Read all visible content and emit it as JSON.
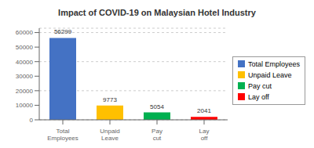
{
  "chart_data": {
    "type": "bar",
    "title": "Impact of COVID-19 on Malaysian Hotel Industry",
    "categories": [
      "Total Employees",
      "Unpaid Leave",
      "Pay cut",
      "Lay off"
    ],
    "values": [
      56299,
      9773,
      5054,
      2041
    ],
    "colors": [
      "#4472C4",
      "#FFC000",
      "#00B050",
      "#FF0000"
    ],
    "ylim": [
      0,
      63000
    ],
    "yticks": [
      0,
      10000,
      20000,
      30000,
      40000,
      50000,
      60000
    ],
    "grid": true,
    "data_labels": true,
    "legend": "right"
  }
}
